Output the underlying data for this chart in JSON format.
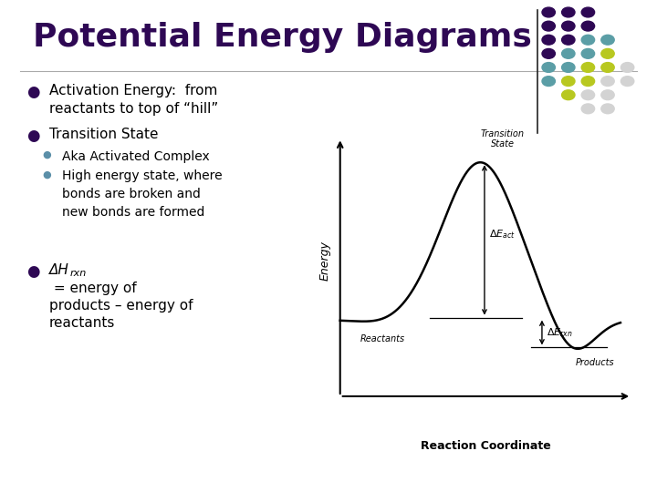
{
  "title": "Potential Energy Diagrams",
  "title_color": "#2E0854",
  "title_fontsize": 26,
  "background_color": "#FFFFFF",
  "bullet1_line1": "Activation Energy:  from",
  "bullet1_line2": "reactants to top of “hill”",
  "bullet2": "Transition State",
  "sub_bullet1": "Aka Activated Complex",
  "sub_bullet2_line1": "High energy state, where",
  "sub_bullet2_line2": "bonds are broken and",
  "sub_bullet2_line3": "new bonds are formed",
  "bullet_color": "#2E0854",
  "text_color": "#000000",
  "sub_bullet_color": "#5B8FA8",
  "diagram_xlabel": "Reaction Coordinate",
  "diagram_ylabel": "Energy",
  "reactants_label": "Reactants",
  "products_label": "Products",
  "dot_grid": [
    [
      1,
      0,
      "#2E0854"
    ],
    [
      2,
      0,
      "#2E0854"
    ],
    [
      3,
      0,
      "#2E0854"
    ],
    [
      1,
      1,
      "#2E0854"
    ],
    [
      2,
      1,
      "#2E0854"
    ],
    [
      3,
      1,
      "#2E0854"
    ],
    [
      1,
      2,
      "#2E0854"
    ],
    [
      2,
      2,
      "#2E0854"
    ],
    [
      3,
      2,
      "#5B9EA6"
    ],
    [
      4,
      2,
      "#5B9EA6"
    ],
    [
      1,
      3,
      "#2E0854"
    ],
    [
      2,
      3,
      "#5B9EA6"
    ],
    [
      3,
      3,
      "#5B9EA6"
    ],
    [
      4,
      3,
      "#B8C820"
    ],
    [
      1,
      4,
      "#5B9EA6"
    ],
    [
      2,
      4,
      "#5B9EA6"
    ],
    [
      3,
      4,
      "#B8C820"
    ],
    [
      4,
      4,
      "#B8C820"
    ],
    [
      5,
      4,
      "#D3D3D3"
    ],
    [
      1,
      5,
      "#5B9EA6"
    ],
    [
      2,
      5,
      "#B8C820"
    ],
    [
      3,
      5,
      "#B8C820"
    ],
    [
      4,
      5,
      "#D3D3D3"
    ],
    [
      5,
      5,
      "#D3D3D3"
    ],
    [
      2,
      6,
      "#B8C820"
    ],
    [
      3,
      6,
      "#D3D3D3"
    ],
    [
      4,
      6,
      "#D3D3D3"
    ],
    [
      3,
      7,
      "#D3D3D3"
    ],
    [
      4,
      7,
      "#D3D3D3"
    ]
  ]
}
